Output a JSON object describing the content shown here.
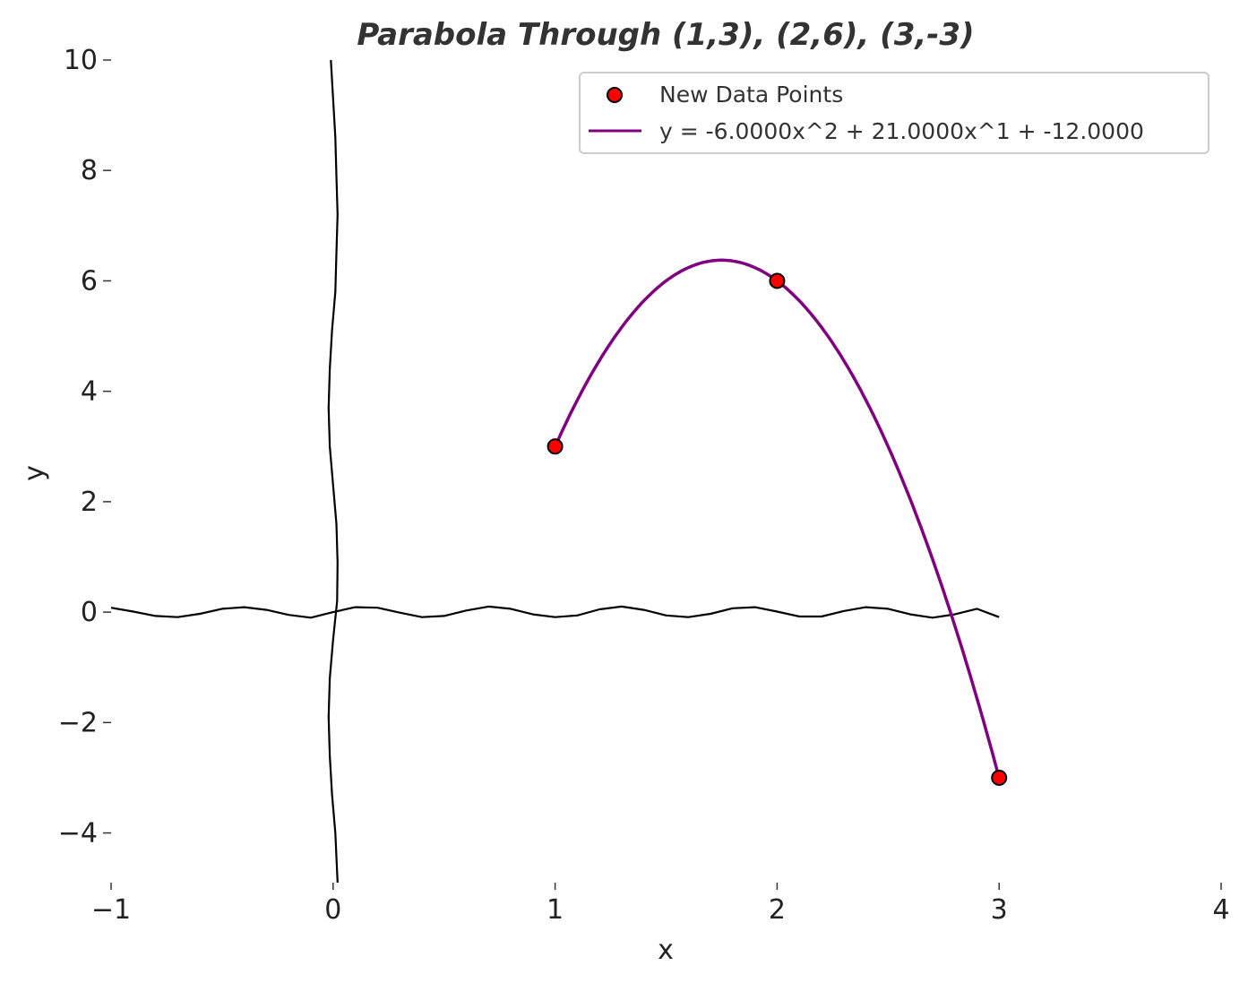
{
  "chart_data": {
    "type": "scatter",
    "title": "Parabola Through (1,3), (2,6), (3,-3)",
    "xlabel": "x",
    "ylabel": "y",
    "xlim": [
      -1,
      4
    ],
    "ylim": [
      -4.9,
      10
    ],
    "x_ticks": [
      -1,
      0,
      1,
      2,
      3,
      4
    ],
    "x_tick_labels": [
      "−1",
      "0",
      "1",
      "2",
      "3",
      "4"
    ],
    "y_ticks": [
      -4,
      -2,
      0,
      2,
      4,
      6,
      8,
      10
    ],
    "y_tick_labels": [
      "−4",
      "−2",
      "0",
      "2",
      "4",
      "6",
      "8",
      "10"
    ],
    "grid": false,
    "legend_position": "top-right",
    "series": [
      {
        "name": "New Data Points",
        "type": "scatter",
        "color": "#ff0000",
        "edge_color": "#000000",
        "x": [
          1,
          2,
          3
        ],
        "y": [
          3,
          6,
          -3
        ]
      },
      {
        "name": "y = -6.0000x^2 + 21.0000x^1 + -12.0000",
        "type": "line",
        "color": "#800080",
        "coefficients": [
          -6,
          21,
          -12
        ],
        "x_range": [
          1,
          3
        ]
      },
      {
        "type": "line",
        "color": "#000000",
        "x": [
          -1,
          -0.9,
          -0.8,
          -0.7,
          -0.6,
          -0.5,
          -0.4,
          -0.3,
          -0.2,
          -0.1,
          0,
          0.1,
          0.2,
          0.3,
          0.4,
          0.5,
          0.6,
          0.7,
          0.8,
          0.9,
          1,
          1.1,
          1.2,
          1.3,
          1.4,
          1.5,
          1.6,
          1.7,
          1.8,
          1.9,
          2,
          2.1,
          2.2,
          2.3,
          2.4,
          2.5,
          2.6,
          2.7,
          2.8,
          2.9,
          3
        ],
        "y": [
          0.08,
          0.01,
          -0.07,
          -0.09,
          -0.03,
          0.06,
          0.09,
          0.04,
          -0.05,
          -0.1,
          0,
          0.09,
          0.08,
          -0.01,
          -0.09,
          -0.07,
          0.03,
          0.1,
          0.06,
          -0.04,
          -0.09,
          -0.06,
          0.05,
          0.1,
          0.04,
          -0.06,
          -0.09,
          -0.03,
          0.07,
          0.09,
          0.01,
          -0.08,
          -0.08,
          0.02,
          0.09,
          0.06,
          -0.04,
          -0.1,
          -0.04,
          0.06,
          -0.09
        ]
      },
      {
        "type": "line",
        "color": "#000000",
        "x": [
          -0.01,
          0.0,
          0.01,
          0.015,
          0.02,
          0.015,
          0.01,
          -0.005,
          -0.015,
          -0.02,
          -0.015,
          0.0,
          0.015,
          0.02,
          0.018,
          0.0,
          -0.015,
          -0.02,
          -0.015,
          -0.005,
          0.01,
          0.02
        ],
        "y": [
          10,
          9.3,
          8.6,
          7.9,
          7.2,
          6.5,
          5.8,
          5.1,
          4.4,
          3.7,
          3.0,
          2.3,
          1.6,
          0.9,
          0.2,
          -0.5,
          -1.2,
          -1.9,
          -2.6,
          -3.3,
          -4.0,
          -4.9
        ]
      }
    ]
  }
}
